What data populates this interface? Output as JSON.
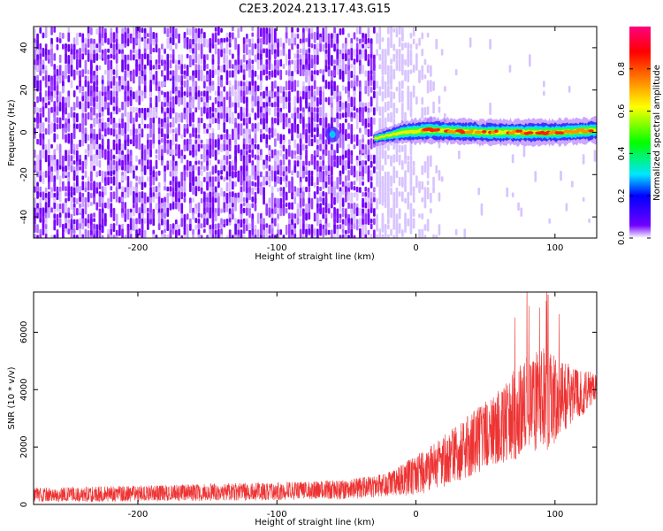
{
  "title": "C2E3.2024.213.17.43.G15",
  "chart_data": [
    {
      "type": "heatmap",
      "name": "spectrogram",
      "xlabel": "Height of straight line (km)",
      "ylabel": "Frequency (Hz)",
      "xlim": [
        -275,
        130
      ],
      "ylim": [
        -50,
        50
      ],
      "xticks": [
        -200,
        -100,
        0,
        100
      ],
      "yticks": [
        -40,
        -20,
        0,
        20,
        40
      ],
      "colorbar": {
        "label": "Normalized spectral amplitude",
        "range": [
          0,
          1
        ],
        "ticks": [
          0.0,
          0.2,
          0.4,
          0.6,
          0.8
        ],
        "tick_labels": [
          "0.0",
          "0.2",
          "0.4",
          "0.6",
          "0.8"
        ],
        "colors": [
          "#ffffff",
          "#7000ff",
          "#0000ff",
          "#00e5ff",
          "#00ff00",
          "#ffff00",
          "#ff8000",
          "#ff0000",
          "#ff0080"
        ]
      },
      "features": {
        "noise_region_x": [
          -275,
          -30
        ],
        "signal_line": [
          {
            "x": -30,
            "y": -3
          },
          {
            "x": -10,
            "y": 0
          },
          {
            "x": 10,
            "y": 1
          },
          {
            "x": 50,
            "y": 0
          },
          {
            "x": 100,
            "y": 0
          },
          {
            "x": 130,
            "y": 1
          }
        ],
        "blob": {
          "x": -60,
          "y": -1
        }
      }
    },
    {
      "type": "line",
      "name": "snr",
      "xlabel": "Height of straight line (km)",
      "ylabel": "SNR (10 * v/v)",
      "xlim": [
        -275,
        130
      ],
      "ylim": [
        0,
        7400
      ],
      "xticks": [
        -200,
        -100,
        0,
        100
      ],
      "yticks": [
        0,
        2000,
        4000,
        6000
      ],
      "color": "#ee3333",
      "envelope": [
        {
          "x": -275,
          "mean": 330,
          "spread": 250
        },
        {
          "x": -200,
          "mean": 380,
          "spread": 280
        },
        {
          "x": -150,
          "mean": 420,
          "spread": 300
        },
        {
          "x": -100,
          "mean": 460,
          "spread": 320
        },
        {
          "x": -50,
          "mean": 520,
          "spread": 340
        },
        {
          "x": -20,
          "mean": 700,
          "spread": 420
        },
        {
          "x": 0,
          "mean": 1000,
          "spread": 700
        },
        {
          "x": 20,
          "mean": 1500,
          "spread": 900
        },
        {
          "x": 40,
          "mean": 2100,
          "spread": 1100
        },
        {
          "x": 60,
          "mean": 2700,
          "spread": 1300
        },
        {
          "x": 75,
          "mean": 3300,
          "spread": 1700
        },
        {
          "x": 90,
          "mean": 3600,
          "spread": 1900
        },
        {
          "x": 100,
          "mean": 3700,
          "spread": 1600
        },
        {
          "x": 115,
          "mean": 3800,
          "spread": 900
        },
        {
          "x": 130,
          "mean": 4000,
          "spread": 600
        }
      ],
      "peak": {
        "x": 95,
        "y": 7300
      }
    }
  ]
}
